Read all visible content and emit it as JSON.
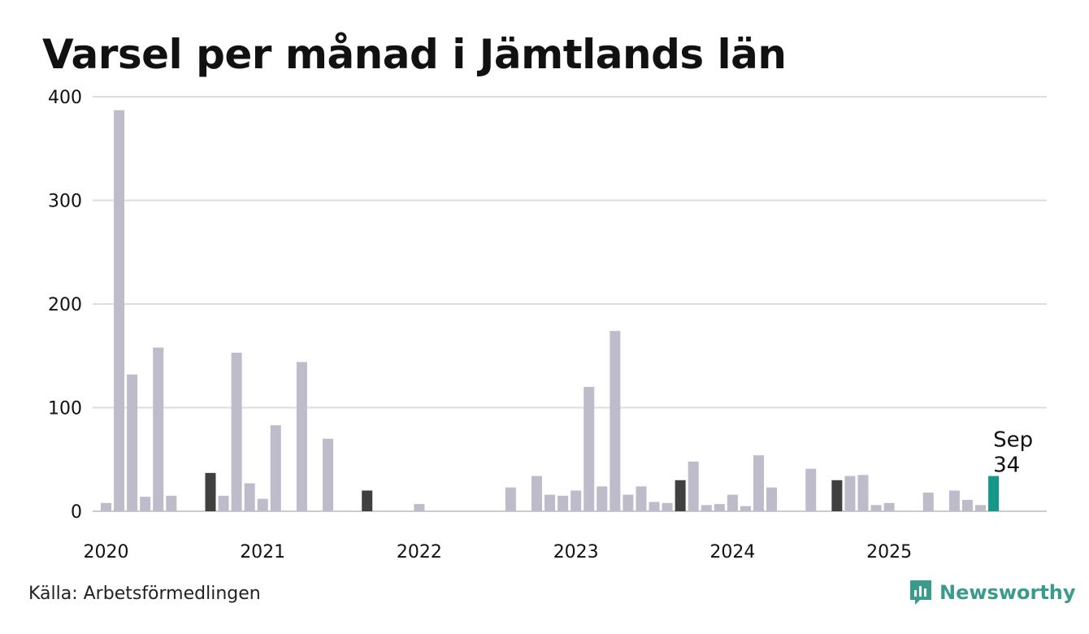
{
  "title": "Varsel per månad i Jämtlands län",
  "source": "Källa: Arbetsförmedlingen",
  "brand": {
    "name": "Newsworthy",
    "icon": "newsworthy-logo-icon"
  },
  "colors": {
    "default_bar": "#bebbcb",
    "highlight_bar": "#404040",
    "current_bar": "#15978a",
    "grid": "#dddddd",
    "axis": "#cccccc",
    "text": "#111111",
    "brand": "#3a9b8c"
  },
  "chart_data": {
    "type": "bar",
    "title": "Varsel per månad i Jämtlands län",
    "xlabel": "",
    "ylabel": "",
    "ylim": [
      0,
      400
    ],
    "yticks": [
      "0",
      "100",
      "200",
      "300",
      "400"
    ],
    "year_labels": [
      "2020",
      "2021",
      "2022",
      "2023",
      "2024",
      "2025"
    ],
    "grid": true,
    "categories": [
      "2020-01",
      "2020-02",
      "2020-03",
      "2020-04",
      "2020-05",
      "2020-06",
      "2020-07",
      "2020-08",
      "2020-09",
      "2020-10",
      "2020-11",
      "2020-12",
      "2021-01",
      "2021-02",
      "2021-03",
      "2021-04",
      "2021-05",
      "2021-06",
      "2021-07",
      "2021-08",
      "2021-09",
      "2021-10",
      "2021-11",
      "2021-12",
      "2022-01",
      "2022-02",
      "2022-03",
      "2022-04",
      "2022-05",
      "2022-06",
      "2022-07",
      "2022-08",
      "2022-09",
      "2022-10",
      "2022-11",
      "2022-12",
      "2023-01",
      "2023-02",
      "2023-03",
      "2023-04",
      "2023-05",
      "2023-06",
      "2023-07",
      "2023-08",
      "2023-09",
      "2023-10",
      "2023-11",
      "2023-12",
      "2024-01",
      "2024-02",
      "2024-03",
      "2024-04",
      "2024-05",
      "2024-06",
      "2024-07",
      "2024-08",
      "2024-09",
      "2024-10",
      "2024-11",
      "2024-12",
      "2025-01",
      "2025-02",
      "2025-03",
      "2025-04",
      "2025-05",
      "2025-06",
      "2025-07",
      "2025-08",
      "2025-09"
    ],
    "values": [
      8,
      387,
      132,
      14,
      158,
      15,
      0,
      0,
      37,
      15,
      153,
      27,
      12,
      83,
      0,
      144,
      0,
      70,
      0,
      0,
      20,
      0,
      0,
      0,
      7,
      0,
      0,
      0,
      0,
      0,
      0,
      23,
      0,
      34,
      16,
      15,
      20,
      120,
      24,
      174,
      16,
      24,
      9,
      8,
      30,
      48,
      6,
      7,
      16,
      5,
      54,
      23,
      0,
      0,
      41,
      0,
      30,
      34,
      35,
      6,
      8,
      0,
      0,
      18,
      0,
      20,
      11,
      6,
      34
    ],
    "highlight_months": [
      "2020-09",
      "2021-09",
      "2023-09",
      "2024-09"
    ],
    "current_month": "2025-09",
    "annotation": {
      "month_label": "Sep",
      "value_label": "34"
    }
  }
}
